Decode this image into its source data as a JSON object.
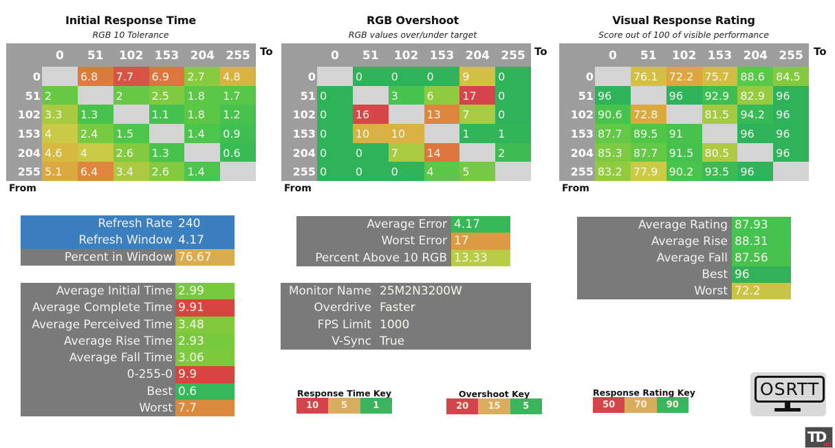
{
  "chart_data": [
    {
      "type": "heatmap",
      "id": "initial_response_time",
      "title": "Initial Response Time",
      "subtitle": "RGB 10 Tolerance",
      "xlabel": "To",
      "ylabel": "From",
      "x_categories": [
        "0",
        "51",
        "102",
        "153",
        "204",
        "255"
      ],
      "y_categories": [
        "0",
        "51",
        "102",
        "153",
        "204",
        "255"
      ],
      "values": [
        [
          null,
          6.8,
          7.7,
          6.9,
          2.7,
          4.8
        ],
        [
          2,
          null,
          2,
          2.5,
          1.8,
          1.7
        ],
        [
          3.3,
          1.3,
          null,
          1.1,
          1.8,
          1.2
        ],
        [
          4,
          2.4,
          1.5,
          null,
          1.4,
          0.9
        ],
        [
          4.6,
          4,
          2.6,
          1.3,
          null,
          0.6
        ],
        [
          5.1,
          6.4,
          3.4,
          2.6,
          1.4,
          null
        ]
      ],
      "color_scale": "Response Time Key"
    },
    {
      "type": "heatmap",
      "id": "rgb_overshoot",
      "title": "RGB Overshoot",
      "subtitle": "RGB values over/under target",
      "xlabel": "To",
      "ylabel": "From",
      "x_categories": [
        "0",
        "51",
        "102",
        "153",
        "204",
        "255"
      ],
      "y_categories": [
        "0",
        "51",
        "102",
        "153",
        "204",
        "255"
      ],
      "values": [
        [
          null,
          0,
          0,
          0,
          9,
          0
        ],
        [
          0,
          null,
          3,
          6,
          17,
          0
        ],
        [
          0,
          16,
          null,
          13,
          7,
          0
        ],
        [
          0,
          10,
          10,
          null,
          1,
          1
        ],
        [
          0,
          0,
          7,
          14,
          null,
          2
        ],
        [
          0,
          0,
          0,
          4,
          5,
          null
        ]
      ],
      "color_scale": "Overshoot Key"
    },
    {
      "type": "heatmap",
      "id": "visual_response_rating",
      "title": "Visual Response Rating",
      "subtitle": "Score out of 100 of visible performance",
      "xlabel": "To",
      "ylabel": "From",
      "x_categories": [
        "0",
        "51",
        "102",
        "153",
        "204",
        "255"
      ],
      "y_categories": [
        "0",
        "51",
        "102",
        "153",
        "204",
        "255"
      ],
      "values": [
        [
          null,
          76.1,
          72.2,
          75.7,
          88.6,
          84.5
        ],
        [
          96,
          null,
          96,
          92.9,
          82.9,
          96
        ],
        [
          90.6,
          72.8,
          null,
          81.5,
          94.2,
          96
        ],
        [
          87.7,
          89.5,
          91,
          null,
          96,
          96
        ],
        [
          85.3,
          87.7,
          91.5,
          80.5,
          null,
          96
        ],
        [
          83.2,
          77.9,
          90.2,
          93.5,
          96,
          null
        ]
      ],
      "color_scale": "Response Rating Key"
    }
  ],
  "refresh_box": {
    "rows": [
      {
        "label": "Refresh Rate",
        "value": "240"
      },
      {
        "label": "Refresh Window",
        "value": "4.17"
      },
      {
        "label": "Percent in Window",
        "value": "76.67",
        "color": "#d9ac4f"
      }
    ],
    "accent": "#3c7fbf"
  },
  "response_stats": {
    "rows": [
      {
        "label": "Average Initial Time",
        "value": "2.99",
        "color": "#79c93f"
      },
      {
        "label": "Average Complete Time",
        "value": "9.91",
        "color": "#d64540"
      },
      {
        "label": "Average Perceived Time",
        "value": "3.48",
        "color": "#83c93e"
      },
      {
        "label": "Average Rise Time",
        "value": "2.93",
        "color": "#79c93f"
      },
      {
        "label": "Average Fall Time",
        "value": "3.06",
        "color": "#7cc93e"
      },
      {
        "label": "0-255-0",
        "value": "9.9",
        "color": "#d64540"
      },
      {
        "label": "Best",
        "value": "0.6",
        "color": "#35b85a"
      },
      {
        "label": "Worst",
        "value": "7.7",
        "color": "#dd8a3f"
      }
    ]
  },
  "overshoot_stats": {
    "rows": [
      {
        "label": "Average Error",
        "value": "4.17",
        "color": "#36b857"
      },
      {
        "label": "Worst Error",
        "value": "17",
        "color": "#dc9a42"
      },
      {
        "label": "Percent Above 10 RGB",
        "value": "13.33",
        "color": "#b9cc45"
      }
    ]
  },
  "monitor_info": {
    "rows": [
      {
        "label": "Monitor Name",
        "value": "25M2N3200W"
      },
      {
        "label": "Overdrive",
        "value": "Faster"
      },
      {
        "label": "FPS Limit",
        "value": "1000"
      },
      {
        "label": "V-Sync",
        "value": "True"
      }
    ]
  },
  "rating_stats": {
    "rows": [
      {
        "label": "Average Rating",
        "value": "87.93",
        "color": "#45c24f"
      },
      {
        "label": "Average Rise",
        "value": "88.31",
        "color": "#45c24f"
      },
      {
        "label": "Average Fall",
        "value": "87.56",
        "color": "#47c24f"
      },
      {
        "label": "Best",
        "value": "96",
        "color": "#33b05a"
      },
      {
        "label": "Worst",
        "value": "72.2",
        "color": "#c8c445"
      }
    ]
  },
  "keys": [
    {
      "title": "Response Time Key",
      "steps": [
        "10",
        "5",
        "1"
      ],
      "colors": [
        "#d5444a",
        "#d9ad5e",
        "#3ab55d"
      ]
    },
    {
      "title": "Overshoot Key",
      "steps": [
        "20",
        "15",
        "5"
      ],
      "colors": [
        "#d5444a",
        "#d9ad5e",
        "#3ab55d"
      ]
    },
    {
      "title": "Response Rating Key",
      "steps": [
        "50",
        "70",
        "90"
      ],
      "colors": [
        "#d5444a",
        "#d9ad5e",
        "#3ab55d"
      ]
    }
  ],
  "logos": {
    "osrtt": "OSRTT",
    "td": "TD",
    "td_hd": "HD"
  },
  "diagonal_color": "#d4d4d4"
}
